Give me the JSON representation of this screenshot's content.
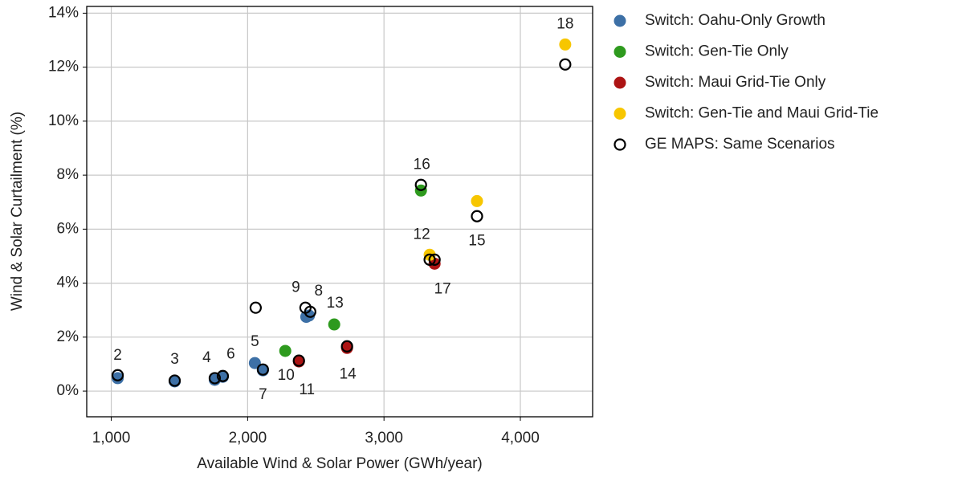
{
  "chart_data": {
    "type": "scatter",
    "x_label": "Available Wind & Solar Power (GWh/year)",
    "y_label": "Wind & Solar Curtailment (%)",
    "xlim": [
      820,
      4530
    ],
    "ylim": [
      -0.95,
      14.25
    ],
    "xticks": [
      {
        "value": 1000,
        "label": "1,000"
      },
      {
        "value": 2000,
        "label": "2,000"
      },
      {
        "value": 3000,
        "label": "3,000"
      },
      {
        "value": 4000,
        "label": "4,000"
      }
    ],
    "yticks": [
      {
        "value": 0,
        "label": "0%"
      },
      {
        "value": 2,
        "label": "2%"
      },
      {
        "value": 4,
        "label": "4%"
      },
      {
        "value": 6,
        "label": "6%"
      },
      {
        "value": 8,
        "label": "8%"
      },
      {
        "value": 10,
        "label": "10%"
      },
      {
        "value": 12,
        "label": "12%"
      },
      {
        "value": 14,
        "label": "14%"
      }
    ],
    "grid": true,
    "legend": "outside-right",
    "series": [
      {
        "name": "Switch: Oahu-Only Growth",
        "color": "#3d70a6",
        "marker": "filled",
        "x": [
          1047,
          1465,
          1759,
          2053,
          1818,
          2112,
          2450,
          2430
        ],
        "values": [
          0.48,
          0.36,
          0.42,
          1.04,
          0.53,
          0.77,
          2.8,
          2.75
        ],
        "labels": [
          "2",
          "3",
          "4",
          "5",
          "6",
          "7",
          "8",
          "9"
        ]
      },
      {
        "name": "Switch: Gen-Tie Only",
        "color": "#2e9a1e",
        "marker": "filled",
        "x": [
          2276,
          2635,
          3271
        ],
        "values": [
          1.49,
          2.47,
          7.43
        ],
        "labels": [
          "10",
          "13",
          "16"
        ]
      },
      {
        "name": "Switch: Maui Grid-Tie Only",
        "color": "#ad1414",
        "marker": "filled",
        "x": [
          2376,
          2729,
          3371
        ],
        "values": [
          1.1,
          1.6,
          4.72
        ],
        "labels": [
          "11",
          "14",
          "17"
        ]
      },
      {
        "name": "Switch: Gen-Tie and Maui Grid-Tie",
        "color": "#f7c600",
        "marker": "filled",
        "x": [
          3335,
          3682,
          4329
        ],
        "values": [
          5.05,
          7.04,
          12.84
        ],
        "labels": [
          "12",
          "15",
          "18"
        ]
      },
      {
        "name": "GE MAPS: Same Scenarios",
        "color": "#000000",
        "marker": "open",
        "x": [
          1047,
          1465,
          1759,
          2059,
          1818,
          2112,
          2459,
          2424,
          2376,
          2729,
          3335,
          3371,
          3271,
          3682,
          4329
        ],
        "values": [
          0.59,
          0.39,
          0.48,
          3.09,
          0.56,
          0.8,
          2.94,
          3.09,
          1.13,
          1.66,
          4.87,
          4.87,
          7.64,
          6.48,
          12.1
        ]
      }
    ]
  }
}
